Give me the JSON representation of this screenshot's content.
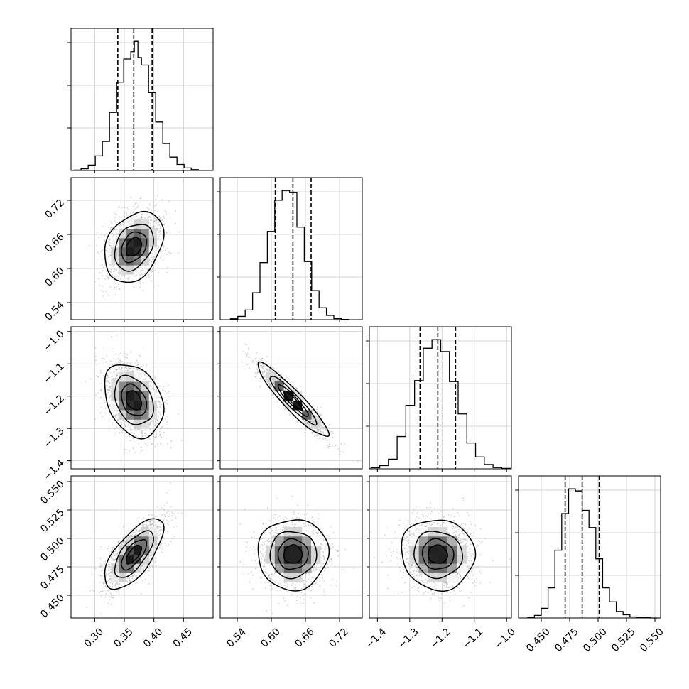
{
  "chart_data": {
    "type": "corner",
    "panel_grid": 4,
    "grid": true,
    "colors": {
      "line": "#000000",
      "scatter": "#9a9a9a",
      "grid": "#c8c8c8"
    },
    "axes": [
      {
        "range": [
          0.26,
          0.5
        ],
        "ticks": [
          0.3,
          0.35,
          0.4,
          0.45
        ],
        "tick_labels": [
          "0.30",
          "0.35",
          "0.40",
          "0.45"
        ]
      },
      {
        "range": [
          0.51,
          0.76
        ],
        "ticks": [
          0.54,
          0.6,
          0.66,
          0.72
        ],
        "tick_labels": [
          "0.54",
          "0.60",
          "0.66",
          "0.72"
        ]
      },
      {
        "range": [
          -1.425,
          -0.985
        ],
        "ticks": [
          -1.4,
          -1.3,
          -1.2,
          -1.1,
          -1.0
        ],
        "tick_labels": [
          "−1.4",
          "−1.3",
          "−1.2",
          "−1.1",
          "−1.0"
        ]
      },
      {
        "range": [
          0.43,
          0.555
        ],
        "ticks": [
          0.45,
          0.475,
          0.5,
          0.525,
          0.55
        ],
        "tick_labels": [
          "0.450",
          "0.475",
          "0.500",
          "0.525",
          "0.550"
        ]
      }
    ],
    "histograms": [
      {
        "param": 0,
        "quantiles": [
          0.339,
          0.366,
          0.397
        ],
        "edges": [
          0.265,
          0.277,
          0.289,
          0.301,
          0.313,
          0.325,
          0.337,
          0.349,
          0.361,
          0.367,
          0.373,
          0.379,
          0.391,
          0.403,
          0.415,
          0.427,
          0.439,
          0.451,
          0.463,
          0.475,
          0.487
        ],
        "counts": [
          2,
          8,
          25,
          68,
          135,
          270,
          410,
          518,
          552,
          600,
          525,
          490,
          362,
          225,
          125,
          62,
          28,
          12,
          4,
          1
        ]
      },
      {
        "param": 1,
        "quantiles": [
          0.607,
          0.638,
          0.67
        ],
        "edges": [
          0.528,
          0.541,
          0.554,
          0.567,
          0.58,
          0.593,
          0.606,
          0.619,
          0.632,
          0.645,
          0.658,
          0.671,
          0.684,
          0.697,
          0.71,
          0.723,
          0.736
        ],
        "counts": [
          4,
          15,
          45,
          125,
          265,
          410,
          555,
          600,
          590,
          430,
          270,
          135,
          55,
          20,
          5,
          1
        ]
      },
      {
        "param": 2,
        "quantiles": [
          -1.268,
          -1.213,
          -1.158
        ],
        "edges": [
          -1.42,
          -1.393,
          -1.366,
          -1.339,
          -1.312,
          -1.285,
          -1.258,
          -1.231,
          -1.204,
          -1.177,
          -1.15,
          -1.123,
          -1.096,
          -1.069,
          -1.042,
          -1.015,
          -0.988
        ],
        "counts": [
          5,
          15,
          45,
          150,
          295,
          410,
          560,
          600,
          545,
          405,
          255,
          120,
          55,
          20,
          6,
          2
        ]
      },
      {
        "param": 3,
        "quantiles": [
          0.471,
          0.486,
          0.501
        ],
        "edges": [
          0.438,
          0.444,
          0.45,
          0.456,
          0.462,
          0.468,
          0.474,
          0.48,
          0.486,
          0.492,
          0.498,
          0.504,
          0.51,
          0.516,
          0.522,
          0.528,
          0.534,
          0.54,
          0.546,
          0.552
        ],
        "counts": [
          2,
          12,
          45,
          140,
          315,
          485,
          600,
          590,
          500,
          420,
          275,
          140,
          75,
          30,
          15,
          5,
          2,
          1,
          0
        ]
      }
    ],
    "pairs": [
      {
        "x": 0,
        "y": 1,
        "mean": [
          0.366,
          0.638
        ],
        "sd": [
          0.024,
          0.03
        ],
        "rho": 0.3
      },
      {
        "x": 0,
        "y": 2,
        "mean": [
          0.366,
          -1.213
        ],
        "sd": [
          0.024,
          0.055
        ],
        "rho": -0.3
      },
      {
        "x": 1,
        "y": 2,
        "mean": [
          0.638,
          -1.213
        ],
        "sd": [
          0.03,
          0.055
        ],
        "rho": -0.93
      },
      {
        "x": 0,
        "y": 3,
        "mean": [
          0.366,
          0.486
        ],
        "sd": [
          0.024,
          0.015
        ],
        "rho": 0.68
      },
      {
        "x": 1,
        "y": 3,
        "mean": [
          0.638,
          0.486
        ],
        "sd": [
          0.03,
          0.015
        ],
        "rho": 0.02
      },
      {
        "x": 2,
        "y": 3,
        "mean": [
          -1.213,
          0.486
        ],
        "sd": [
          0.055,
          0.015
        ],
        "rho": -0.06
      }
    ],
    "contour_levels_sigma": [
      0.5,
      1.0,
      1.5,
      2.0
    ],
    "n_samples_shown": 1500
  }
}
